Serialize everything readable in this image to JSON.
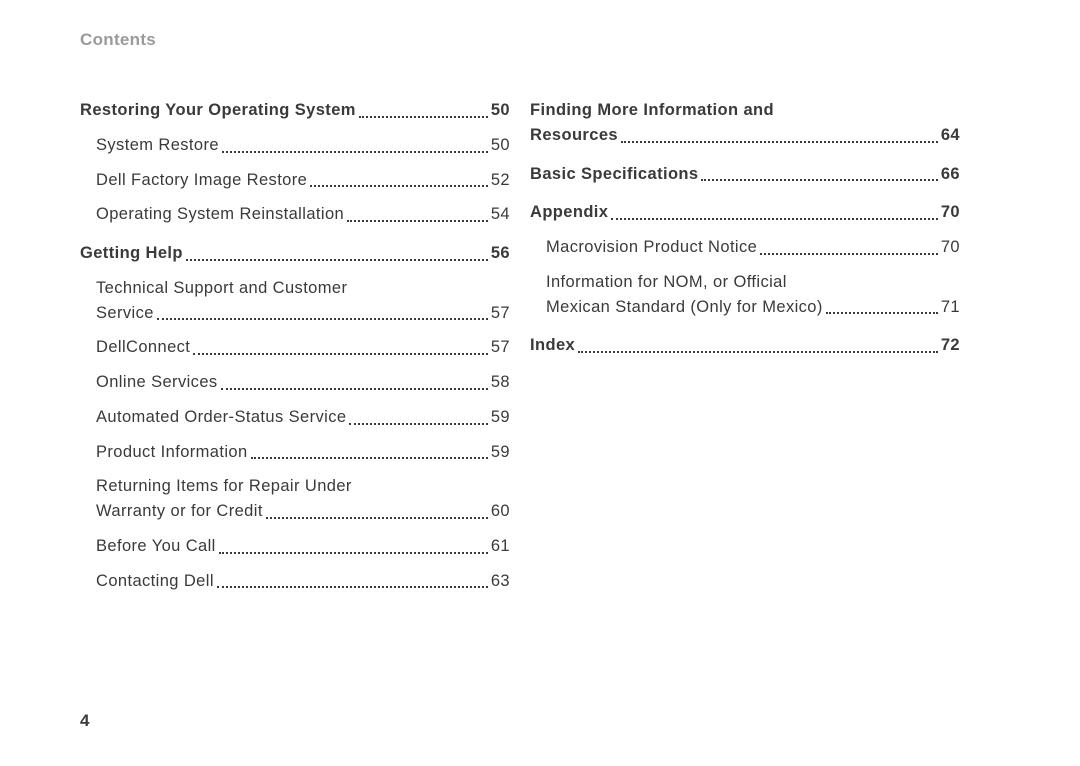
{
  "header_title": "Contents",
  "page_number": "4",
  "colors": {
    "header": "#9a9a9a",
    "text": "#3a3a3a",
    "bg": "#ffffff"
  },
  "font_sizes": {
    "header": 17,
    "entry": 16.5,
    "pagenum": 17
  },
  "left_col": [
    {
      "type": "section",
      "label": "Restoring Your Operating System",
      "page": "50"
    },
    {
      "type": "sub",
      "label": "System Restore",
      "page": "50"
    },
    {
      "type": "sub",
      "label": "Dell Factory Image Restore",
      "page": "52"
    },
    {
      "type": "sub",
      "label": "Operating System Reinstallation",
      "page": "54"
    },
    {
      "type": "section",
      "label": "Getting Help",
      "page": "56"
    },
    {
      "type": "sub",
      "label_line1": "Technical Support and Customer",
      "label_line2": "Service",
      "page": "57"
    },
    {
      "type": "sub",
      "label": "DellConnect",
      "page": "57"
    },
    {
      "type": "sub",
      "label": "Online Services",
      "page": "58"
    },
    {
      "type": "sub",
      "label": "Automated Order-Status Service",
      "page": "59"
    },
    {
      "type": "sub",
      "label": "Product Information",
      "page": "59"
    },
    {
      "type": "sub",
      "label_line1": "Returning Items for Repair Under",
      "label_line2": "Warranty or for Credit",
      "page": "60"
    },
    {
      "type": "sub",
      "label": "Before You Call",
      "page": "61"
    },
    {
      "type": "sub",
      "label": "Contacting Dell",
      "page": "63"
    }
  ],
  "right_col": [
    {
      "type": "section",
      "label_line1": "Finding More Information and",
      "label_line2": "Resources",
      "page": "64"
    },
    {
      "type": "section",
      "label": "Basic Specifications",
      "page": "66"
    },
    {
      "type": "section",
      "label": "Appendix",
      "page": "70"
    },
    {
      "type": "sub",
      "label": "Macrovision Product Notice",
      "page": "70"
    },
    {
      "type": "sub",
      "label_line1": "Information for NOM, or Official",
      "label_line2": "Mexican Standard (Only for Mexico)",
      "page": "71"
    },
    {
      "type": "section",
      "label": "Index",
      "page": "72"
    }
  ]
}
